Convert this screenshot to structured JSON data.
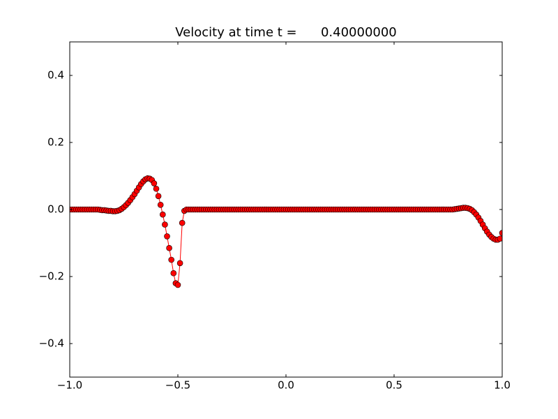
{
  "chart_data": {
    "type": "line",
    "title": "Velocity at time t =      0.40000000",
    "color": "#ff0000",
    "marker_color": "#ff0000",
    "x": [
      -1.0,
      -0.99,
      -0.98,
      -0.97,
      -0.96,
      -0.95,
      -0.94,
      -0.93,
      -0.92,
      -0.91,
      -0.9,
      -0.89,
      -0.88,
      -0.87,
      -0.86,
      -0.85,
      -0.84,
      -0.83,
      -0.82,
      -0.81,
      -0.8,
      -0.79,
      -0.78,
      -0.77,
      -0.76,
      -0.75,
      -0.74,
      -0.73,
      -0.72,
      -0.71,
      -0.7,
      -0.69,
      -0.68,
      -0.67,
      -0.66,
      -0.65,
      -0.64,
      -0.63,
      -0.62,
      -0.61,
      -0.6,
      -0.59,
      -0.58,
      -0.57,
      -0.56,
      -0.55,
      -0.54,
      -0.53,
      -0.52,
      -0.51,
      -0.5,
      -0.49,
      -0.48,
      -0.47,
      -0.46,
      -0.45,
      -0.44,
      -0.43,
      -0.42,
      -0.41,
      -0.4,
      -0.39,
      -0.38,
      -0.37,
      -0.36,
      -0.35,
      -0.34,
      -0.33,
      -0.32,
      -0.31,
      -0.3,
      -0.29,
      -0.28,
      -0.27,
      -0.26,
      -0.25,
      -0.24,
      -0.23,
      -0.22,
      -0.21,
      -0.2,
      -0.19,
      -0.18,
      -0.17,
      -0.16,
      -0.15,
      -0.14,
      -0.13,
      -0.12,
      -0.11,
      -0.1,
      -0.09,
      -0.08,
      -0.07,
      -0.06,
      -0.05,
      -0.04,
      -0.03,
      -0.02,
      -0.01,
      0.0,
      0.01,
      0.02,
      0.03,
      0.04,
      0.05,
      0.06,
      0.07,
      0.08,
      0.09,
      0.1,
      0.11,
      0.12,
      0.13,
      0.14,
      0.15,
      0.16,
      0.17,
      0.18,
      0.19,
      0.2,
      0.21,
      0.22,
      0.23,
      0.24,
      0.25,
      0.26,
      0.27,
      0.28,
      0.29,
      0.3,
      0.31,
      0.32,
      0.33,
      0.34,
      0.35,
      0.36,
      0.37,
      0.38,
      0.39,
      0.4,
      0.41,
      0.42,
      0.43,
      0.44,
      0.45,
      0.46,
      0.47,
      0.48,
      0.49,
      0.5,
      0.51,
      0.52,
      0.53,
      0.54,
      0.55,
      0.56,
      0.57,
      0.58,
      0.59,
      0.6,
      0.61,
      0.62,
      0.63,
      0.64,
      0.65,
      0.66,
      0.67,
      0.68,
      0.69,
      0.7,
      0.71,
      0.72,
      0.73,
      0.74,
      0.75,
      0.76,
      0.77,
      0.78,
      0.79,
      0.8,
      0.81,
      0.82,
      0.83,
      0.84,
      0.85,
      0.86,
      0.87,
      0.88,
      0.89,
      0.9,
      0.91,
      0.92,
      0.93,
      0.94,
      0.95,
      0.96,
      0.97,
      0.98,
      0.99,
      1.0
    ],
    "values": [
      0,
      0,
      0,
      0,
      0,
      0,
      0,
      0,
      0,
      0,
      0,
      0,
      0,
      0,
      -0.001,
      -0.002,
      -0.002,
      -0.003,
      -0.004,
      -0.004,
      -0.005,
      -0.005,
      -0.004,
      -0.002,
      0.002,
      0.007,
      0.013,
      0.02,
      0.028,
      0.037,
      0.046,
      0.056,
      0.066,
      0.076,
      0.084,
      0.09,
      0.093,
      0.092,
      0.088,
      0.078,
      0.062,
      0.04,
      0.014,
      -0.015,
      -0.045,
      -0.08,
      -0.115,
      -0.15,
      -0.19,
      -0.22,
      -0.225,
      -0.16,
      -0.04,
      -0.004,
      0,
      0,
      0,
      0,
      0,
      0,
      0,
      0,
      0,
      0,
      0,
      0,
      0,
      0,
      0,
      0,
      0,
      0,
      0,
      0,
      0,
      0,
      0,
      0,
      0,
      0,
      0,
      0,
      0,
      0,
      0,
      0,
      0,
      0,
      0,
      0,
      0,
      0,
      0,
      0,
      0,
      0,
      0,
      0,
      0,
      0,
      0,
      0,
      0,
      0,
      0,
      0,
      0,
      0,
      0,
      0,
      0,
      0,
      0,
      0,
      0,
      0,
      0,
      0,
      0,
      0,
      0,
      0,
      0,
      0,
      0,
      0,
      0,
      0,
      0,
      0,
      0,
      0,
      0,
      0,
      0,
      0,
      0,
      0,
      0,
      0,
      0,
      0,
      0,
      0,
      0,
      0,
      0,
      0,
      0,
      0,
      0,
      0,
      0,
      0,
      0,
      0,
      0,
      0,
      0,
      0,
      0,
      0,
      0,
      0,
      0,
      0,
      0,
      0,
      0,
      0,
      0,
      0,
      0,
      0,
      0,
      0,
      0,
      0,
      0.001,
      0.002,
      0.003,
      0.004,
      0.005,
      0.005,
      0.004,
      0.002,
      -0.002,
      -0.008,
      -0.015,
      -0.024,
      -0.034,
      -0.045,
      -0.056,
      -0.066,
      -0.075,
      -0.082,
      -0.087,
      -0.09,
      -0.09,
      -0.087,
      -0.07
    ],
    "xlim": [
      -1,
      1
    ],
    "xticks": [
      {
        "value": -1,
        "label": "−1.0"
      },
      {
        "value": -0.5,
        "label": "−0.5"
      },
      {
        "value": 0,
        "label": "0.0"
      },
      {
        "value": 0.5,
        "label": "0.5"
      },
      {
        "value": 1,
        "label": "1.0"
      }
    ],
    "ylim": [
      -0.5,
      0.5
    ],
    "yticks": [
      {
        "value": -0.4,
        "label": "−0.4"
      },
      {
        "value": -0.2,
        "label": "−0.2"
      },
      {
        "value": 0,
        "label": "0.0"
      },
      0.2,
      0.4
    ],
    "grid": false
  }
}
